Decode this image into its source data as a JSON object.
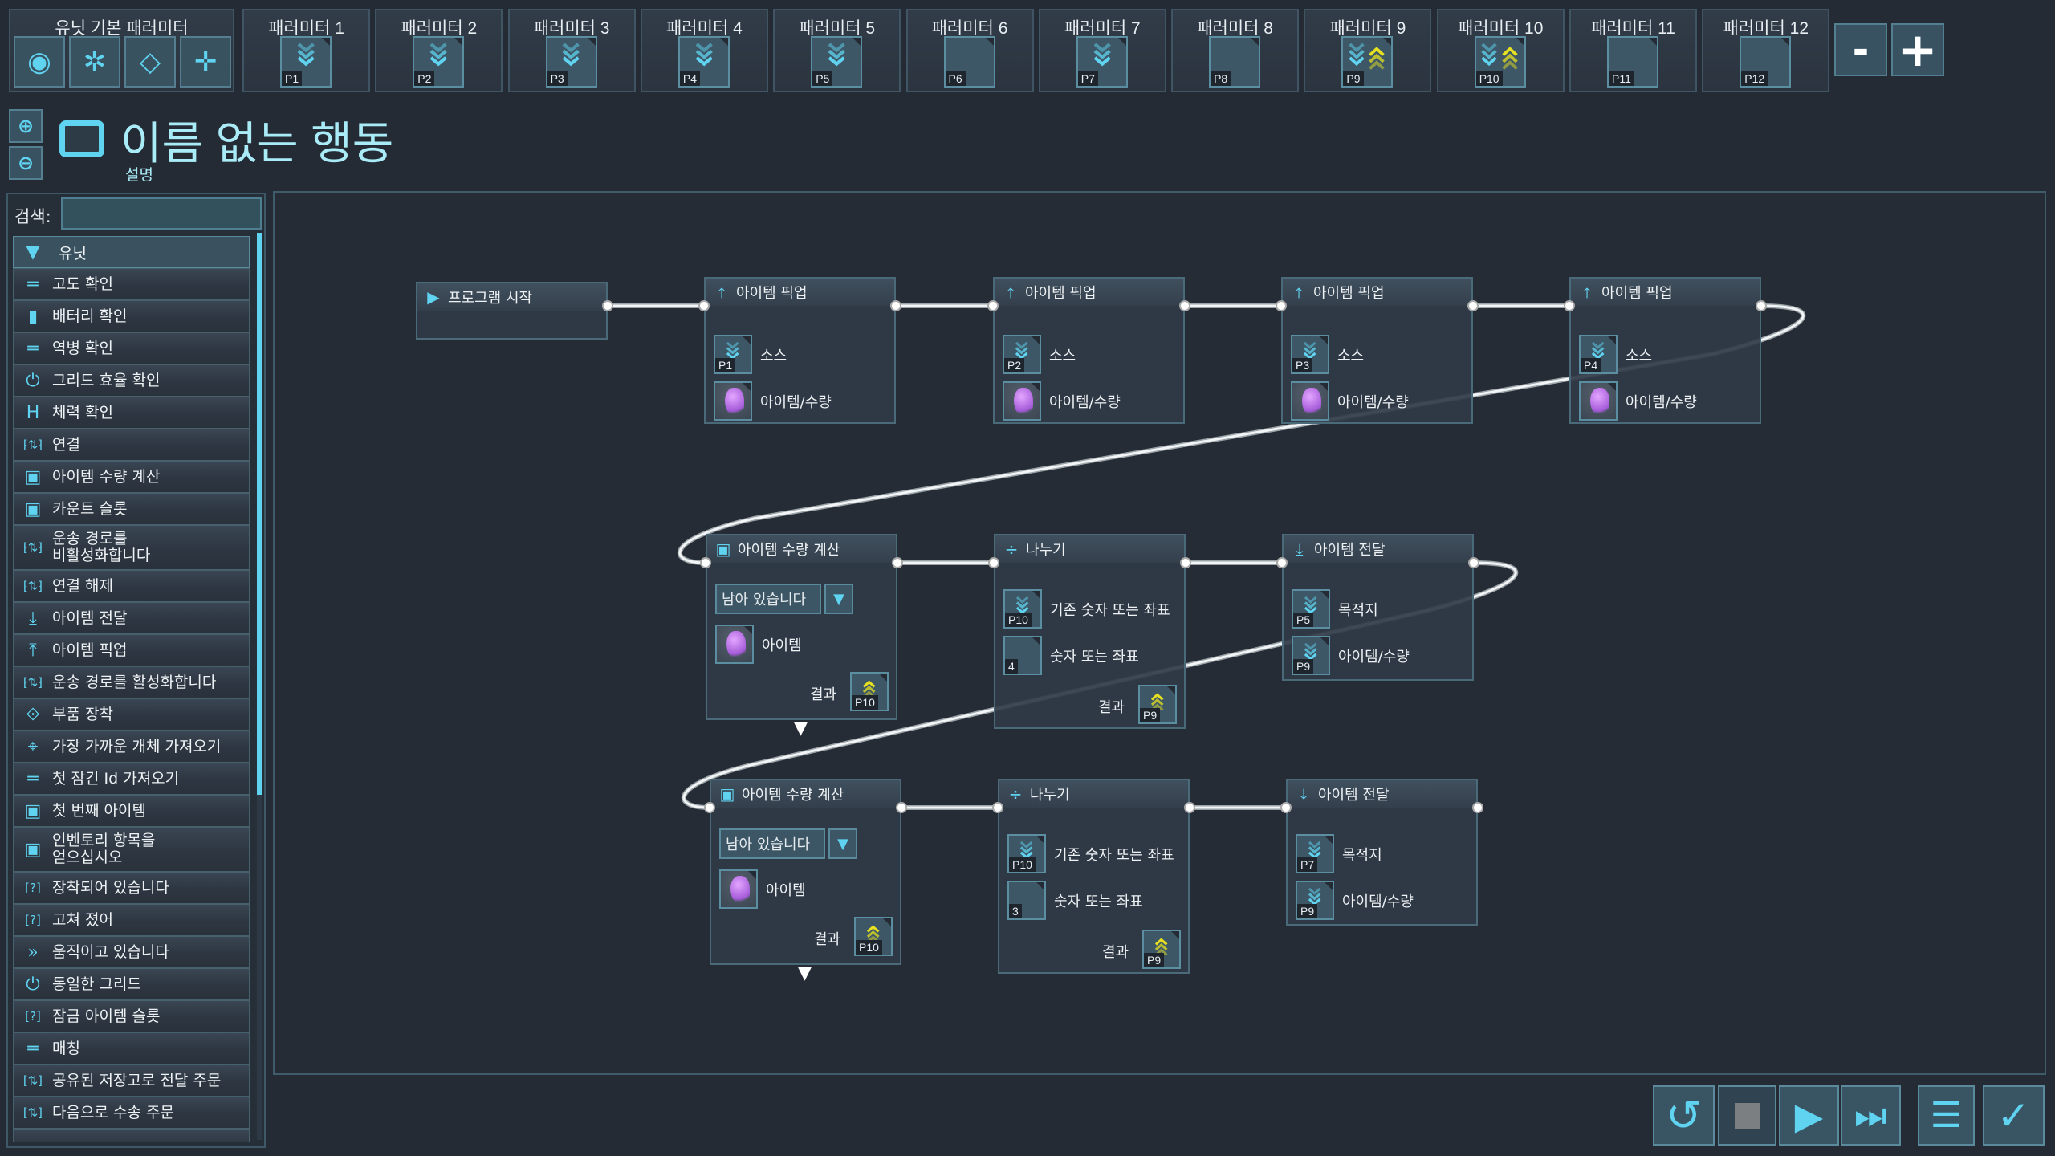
{
  "topbar": {
    "unit_params_label": "유닛 기본 패러미터",
    "unit_param_icons": [
      "signal-icon",
      "aperture-icon",
      "link-icon",
      "converge-icon"
    ],
    "params": [
      {
        "label": "패러미터 1",
        "code": "P1",
        "icons": [
          "in"
        ]
      },
      {
        "label": "패러미터 2",
        "code": "P2",
        "icons": [
          "in"
        ]
      },
      {
        "label": "패러미터 3",
        "code": "P3",
        "icons": [
          "in"
        ]
      },
      {
        "label": "패러미터 4",
        "code": "P4",
        "icons": [
          "in"
        ]
      },
      {
        "label": "패러미터 5",
        "code": "P5",
        "icons": [
          "in"
        ]
      },
      {
        "label": "패러미터 6",
        "code": "P6",
        "icons": []
      },
      {
        "label": "패러미터 7",
        "code": "P7",
        "icons": [
          "in"
        ]
      },
      {
        "label": "패러미터 8",
        "code": "P8",
        "icons": []
      },
      {
        "label": "패러미터 9",
        "code": "P9",
        "icons": [
          "in",
          "out"
        ]
      },
      {
        "label": "패러미터 10",
        "code": "P10",
        "icons": [
          "in",
          "out"
        ]
      },
      {
        "label": "패러미터 11",
        "code": "P11",
        "icons": []
      },
      {
        "label": "패러미터 12",
        "code": "P12",
        "icons": []
      }
    ],
    "minus_label": "-",
    "plus_label": "+"
  },
  "header": {
    "title": "이름 없는 행동",
    "description": "설명"
  },
  "search": {
    "label": "검색:",
    "value": "",
    "placeholder": ""
  },
  "sidebar": {
    "category": "유닛",
    "items": [
      {
        "label": "고도 확인",
        "icon": "equals-icon"
      },
      {
        "label": "배터리 확인",
        "icon": "battery-icon"
      },
      {
        "label": "역병 확인",
        "icon": "equals-icon"
      },
      {
        "label": "그리드 효율 확인",
        "icon": "power-icon"
      },
      {
        "label": "체력 확인",
        "icon": "h-icon"
      },
      {
        "label": "연결",
        "icon": "bracket-arrows-icon"
      },
      {
        "label": "아이템 수량 계산",
        "icon": "question-box-icon"
      },
      {
        "label": "카운트 슬롯",
        "icon": "question-box-icon"
      },
      {
        "label": "운송 경로를\n비활성화합니다",
        "icon": "bracket-arrows-icon"
      },
      {
        "label": "연결 해제",
        "icon": "bracket-arrows-icon"
      },
      {
        "label": "아이템 전달",
        "icon": "download-icon"
      },
      {
        "label": "아이템 픽업",
        "icon": "upload-icon"
      },
      {
        "label": "운송 경로를 활성화합니다",
        "icon": "bracket-arrows-icon"
      },
      {
        "label": "부품 장착",
        "icon": "link-icon"
      },
      {
        "label": "가장 가까운 개체 가져오기",
        "icon": "locate-icon"
      },
      {
        "label": "첫 잠긴 Id 가져오기",
        "icon": "equals-icon"
      },
      {
        "label": "첫 번째 아이템",
        "icon": "question-box-icon"
      },
      {
        "label": "인벤토리 항목을\n얻으십시오",
        "icon": "question-box-icon"
      },
      {
        "label": "장착되어 있습니다",
        "icon": "bracket-question-icon"
      },
      {
        "label": "고쳐 졌어",
        "icon": "bracket-question-icon"
      },
      {
        "label": "움직이고 있습니다",
        "icon": "move-icon"
      },
      {
        "label": "동일한 그리드",
        "icon": "power-icon"
      },
      {
        "label": "잠금 아이템 슬롯",
        "icon": "bracket-question-icon"
      },
      {
        "label": "매칭",
        "icon": "equals-icon"
      },
      {
        "label": "공유된 저장고로 전달 주문",
        "icon": "bracket-arrows-icon"
      },
      {
        "label": "다음으로 수송 주문",
        "icon": "bracket-arrows-icon"
      }
    ]
  },
  "nodes": [
    {
      "type": "start",
      "title": "프로그램 시작",
      "icon": "play-icon"
    },
    {
      "type": "pickup",
      "title": "아이템 픽업",
      "icon": "upload-icon",
      "fields": [
        {
          "label": "소스",
          "param": "P1",
          "kind": "in"
        },
        {
          "label": "아이템/수량",
          "kind": "item"
        }
      ]
    },
    {
      "type": "pickup",
      "title": "아이템 픽업",
      "icon": "upload-icon",
      "fields": [
        {
          "label": "소스",
          "param": "P2",
          "kind": "in"
        },
        {
          "label": "아이템/수량",
          "kind": "item"
        }
      ]
    },
    {
      "type": "pickup",
      "title": "아이템 픽업",
      "icon": "upload-icon",
      "fields": [
        {
          "label": "소스",
          "param": "P3",
          "kind": "in"
        },
        {
          "label": "아이템/수량",
          "kind": "item"
        }
      ]
    },
    {
      "type": "pickup",
      "title": "아이템 픽업",
      "icon": "upload-icon",
      "fields": [
        {
          "label": "소스",
          "param": "P4",
          "kind": "in"
        },
        {
          "label": "아이템/수량",
          "kind": "item"
        }
      ]
    },
    {
      "type": "count",
      "title": "아이템 수량 계산",
      "icon": "question-box-icon",
      "dropdown": "남아 있습니다",
      "fields": [
        {
          "label": "아이템",
          "kind": "item"
        }
      ],
      "result": {
        "label": "결과",
        "param": "P10"
      }
    },
    {
      "type": "divide",
      "title": "나누기",
      "icon": "divide-icon",
      "fields": [
        {
          "label": "기존 숫자 또는 좌표",
          "param": "P10",
          "kind": "in"
        },
        {
          "label": "숫자 또는 좌표",
          "param": "4",
          "kind": "const"
        }
      ],
      "result": {
        "label": "결과",
        "param": "P9"
      }
    },
    {
      "type": "deliver",
      "title": "아이템 전달",
      "icon": "download-icon",
      "fields": [
        {
          "label": "목적지",
          "param": "P5",
          "kind": "in"
        },
        {
          "label": "아이템/수량",
          "param": "P9",
          "kind": "in"
        }
      ]
    },
    {
      "type": "count",
      "title": "아이템 수량 계산",
      "icon": "question-box-icon",
      "dropdown": "남아 있습니다",
      "fields": [
        {
          "label": "아이템",
          "kind": "item"
        }
      ],
      "result": {
        "label": "결과",
        "param": "P10"
      }
    },
    {
      "type": "divide",
      "title": "나누기",
      "icon": "divide-icon",
      "fields": [
        {
          "label": "기존 숫자 또는 좌표",
          "param": "P10",
          "kind": "in"
        },
        {
          "label": "숫자 또는 좌표",
          "param": "3",
          "kind": "const"
        }
      ],
      "result": {
        "label": "결과",
        "param": "P9"
      }
    },
    {
      "type": "deliver",
      "title": "아이템 전달",
      "icon": "download-icon",
      "fields": [
        {
          "label": "목적지",
          "param": "P7",
          "kind": "in"
        },
        {
          "label": "아이템/수량",
          "param": "P9",
          "kind": "in"
        }
      ]
    }
  ],
  "controls": [
    "restart-icon",
    "stop-icon",
    "play-icon",
    "step-icon",
    "program-list-icon",
    "confirm-icon"
  ],
  "colors": {
    "accent": "#5fd3f0",
    "output": "#e6e020",
    "item": "#c77cf0",
    "background": "#252b35"
  }
}
